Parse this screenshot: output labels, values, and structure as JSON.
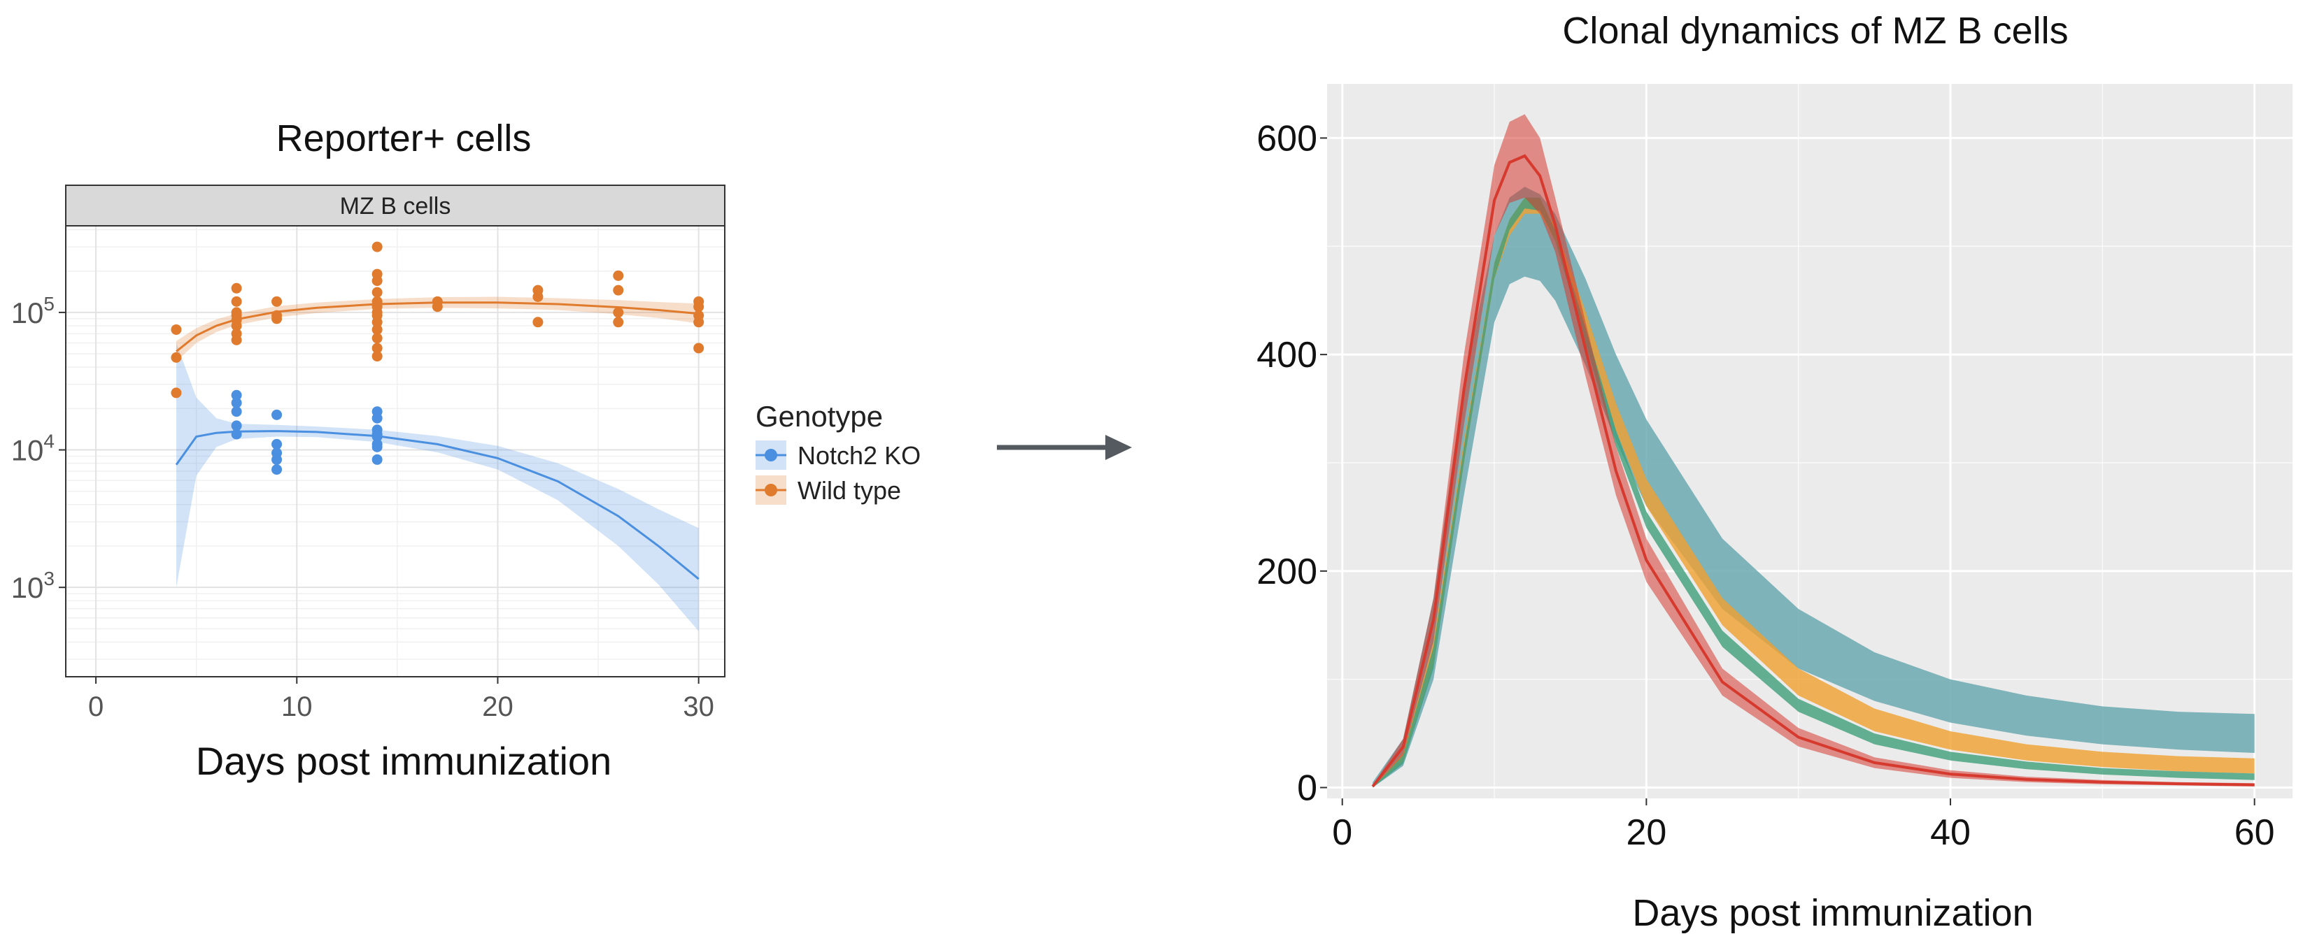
{
  "colors": {
    "notch2_ko": "#4a8fe0",
    "wild_type": "#e07b2e",
    "left_panel_bg": "#ffffff",
    "facet_strip": "#d9d9d9",
    "right_panel_bg": "#ebebeb",
    "gridline": "#ffffff",
    "arrow": "#555a60",
    "band_teal": "#6aa9b0",
    "band_orange": "#f0a030",
    "band_green": "#3f9f7a",
    "band_red": "#d63a2f"
  },
  "chart_data": [
    {
      "type": "scatter",
      "title": "Reporter+ cells",
      "facet": "MZ B cells",
      "xlabel": "Days post immunization",
      "ylabel": "",
      "xlim": [
        -1.5,
        31.3
      ],
      "ylim_log10": [
        2.35,
        5.63
      ],
      "y_scale": "log10",
      "x_ticks": [
        0,
        10,
        20,
        30
      ],
      "x_tick_labels": [
        "0",
        "10",
        "20",
        "30"
      ],
      "y_ticks": [
        1000,
        10000,
        100000
      ],
      "y_tick_labels": [
        {
          "base": "10",
          "exp": "3"
        },
        {
          "base": "10",
          "exp": "4"
        },
        {
          "base": "10",
          "exp": "5"
        }
      ],
      "grid": true,
      "legend": {
        "title": "Genotype",
        "position": "right",
        "entries": [
          "Notch2 KO",
          "Wild type"
        ]
      },
      "series": [
        {
          "name": "Notch2 KO",
          "points": [
            [
              7,
              25000
            ],
            [
              7,
              22000
            ],
            [
              7,
              19000
            ],
            [
              7,
              15000
            ],
            [
              7,
              13000
            ],
            [
              9,
              18000
            ],
            [
              9,
              11000
            ],
            [
              9,
              9500
            ],
            [
              9,
              8500
            ],
            [
              9,
              7200
            ],
            [
              14,
              19000
            ],
            [
              14,
              17000
            ],
            [
              14,
              14000
            ],
            [
              14,
              13000
            ],
            [
              14,
              12500
            ],
            [
              14,
              11000
            ],
            [
              14,
              10500
            ],
            [
              14,
              8500
            ]
          ],
          "fit_x": [
            4,
            5,
            6,
            7,
            9,
            11,
            14,
            17,
            20,
            23,
            26,
            28,
            30
          ],
          "fit_y": [
            7800,
            12500,
            13300,
            13600,
            13700,
            13500,
            12600,
            11000,
            8700,
            5900,
            3300,
            2000,
            1150
          ],
          "ci_lower": [
            1000,
            6500,
            10500,
            12000,
            12500,
            12400,
            11400,
            9600,
            7200,
            4300,
            2000,
            1050,
            480
          ],
          "ci_upper": [
            60000,
            24000,
            17000,
            15500,
            15200,
            14800,
            14000,
            12600,
            10700,
            8000,
            5200,
            3700,
            2700
          ]
        },
        {
          "name": "Wild type",
          "points": [
            [
              4,
              75000
            ],
            [
              4,
              47000
            ],
            [
              4,
              26000
            ],
            [
              7,
              150000
            ],
            [
              7,
              120000
            ],
            [
              7,
              100000
            ],
            [
              7,
              95000
            ],
            [
              7,
              88000
            ],
            [
              7,
              80000
            ],
            [
              7,
              70000
            ],
            [
              7,
              63000
            ],
            [
              9,
              120000
            ],
            [
              9,
              95000
            ],
            [
              9,
              90000
            ],
            [
              14,
              300000
            ],
            [
              14,
              190000
            ],
            [
              14,
              170000
            ],
            [
              14,
              140000
            ],
            [
              14,
              120000
            ],
            [
              14,
              110000
            ],
            [
              14,
              100000
            ],
            [
              14,
              95000
            ],
            [
              14,
              85000
            ],
            [
              14,
              75000
            ],
            [
              14,
              65000
            ],
            [
              14,
              55000
            ],
            [
              14,
              48000
            ],
            [
              17,
              120000
            ],
            [
              17,
              110000
            ],
            [
              22,
              145000
            ],
            [
              22,
              130000
            ],
            [
              22,
              85000
            ],
            [
              26,
              185000
            ],
            [
              26,
              145000
            ],
            [
              26,
              100000
            ],
            [
              26,
              85000
            ],
            [
              30,
              120000
            ],
            [
              30,
              110000
            ],
            [
              30,
              95000
            ],
            [
              30,
              85000
            ],
            [
              30,
              55000
            ]
          ],
          "fit_x": [
            4,
            5,
            6,
            7,
            9,
            11,
            14,
            17,
            20,
            23,
            26,
            28,
            30
          ],
          "fit_y": [
            52000,
            68000,
            80000,
            89000,
            101000,
            108000,
            115000,
            118000,
            118000,
            115000,
            109000,
            104000,
            98000
          ],
          "ci_lower": [
            44000,
            60000,
            72000,
            81000,
            92000,
            99000,
            106000,
            108000,
            107000,
            104000,
            97000,
            91000,
            83000
          ],
          "ci_upper": [
            62000,
            77000,
            89000,
            98000,
            111000,
            118000,
            125000,
            129000,
            130000,
            127000,
            123000,
            119000,
            116000
          ]
        }
      ]
    },
    {
      "type": "area",
      "title": "Clonal dynamics of MZ B cells",
      "xlabel": "Days post immunization",
      "ylabel": "",
      "xlim": [
        -1,
        62.5
      ],
      "ylim": [
        -10,
        650
      ],
      "x_ticks": [
        0,
        20,
        40,
        60
      ],
      "x_tick_labels": [
        "0",
        "20",
        "40",
        "60"
      ],
      "y_ticks": [
        0,
        200,
        400,
        600
      ],
      "y_tick_labels": [
        "0",
        "200",
        "400",
        "600"
      ],
      "grid": true,
      "x": [
        2,
        4,
        6,
        8,
        10,
        11,
        12,
        13,
        14,
        16,
        18,
        20,
        25,
        30,
        35,
        40,
        45,
        50,
        55,
        60
      ],
      "series": [
        {
          "name": "",
          "role": "teal_band",
          "color": "#6aa9b0",
          "lower": [
            0,
            20,
            100,
            270,
            430,
            465,
            472,
            468,
            450,
            390,
            320,
            260,
            165,
            110,
            80,
            60,
            48,
            40,
            35,
            32
          ],
          "upper": [
            5,
            45,
            175,
            375,
            510,
            545,
            555,
            548,
            530,
            470,
            400,
            340,
            230,
            165,
            125,
            100,
            85,
            75,
            70,
            68
          ]
        },
        {
          "name": "",
          "role": "orange_band",
          "color": "#f0a030",
          "lower": [
            0,
            25,
            115,
            300,
            470,
            510,
            530,
            530,
            505,
            420,
            330,
            260,
            150,
            85,
            52,
            35,
            25,
            19,
            15,
            13
          ],
          "upper": [
            0,
            32,
            135,
            320,
            485,
            525,
            545,
            543,
            518,
            440,
            355,
            285,
            175,
            110,
            73,
            52,
            40,
            33,
            29,
            27
          ]
        },
        {
          "name": "",
          "role": "green_band",
          "color": "#3f9f7a",
          "lower": [
            0,
            22,
            110,
            300,
            470,
            515,
            535,
            533,
            505,
            410,
            315,
            240,
            130,
            70,
            40,
            25,
            17,
            12,
            9,
            7
          ],
          "upper": [
            0,
            30,
            130,
            315,
            485,
            525,
            545,
            545,
            515,
            425,
            330,
            255,
            145,
            82,
            50,
            33,
            24,
            18,
            15,
            13
          ]
        },
        {
          "name": "",
          "role": "red_band",
          "color": "#d63a2f",
          "lower": [
            0,
            30,
            135,
            335,
            510,
            540,
            545,
            530,
            495,
            380,
            270,
            190,
            85,
            38,
            18,
            9,
            5,
            3,
            2,
            1
          ],
          "upper": [
            2,
            45,
            175,
            400,
            575,
            615,
            622,
            600,
            545,
            430,
            315,
            230,
            110,
            55,
            28,
            16,
            10,
            7,
            5,
            4
          ]
        }
      ]
    }
  ],
  "arrow": {
    "direction": "right"
  }
}
